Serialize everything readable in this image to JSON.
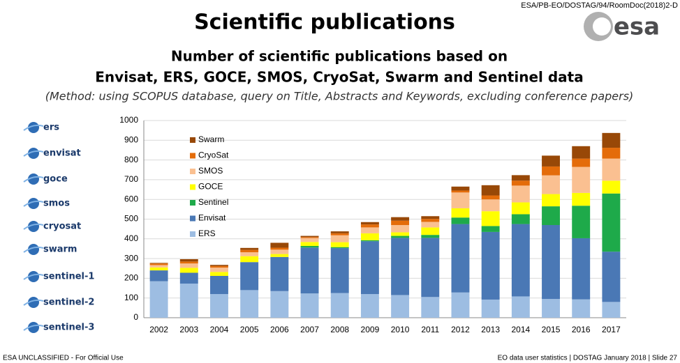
{
  "header": {
    "title": "Scientific publications",
    "reference": "ESA/PB-EO/DOSTAG/94/RoomDoc(2018)2-D",
    "logo": "esa"
  },
  "missions": [
    "ers",
    "envisat",
    "goce",
    "smos",
    "cryosat",
    "swarm",
    "sentinel-1",
    "sentinel-2",
    "sentinel-3"
  ],
  "footer": {
    "left": "ESA UNCLASSIFIED - For Official Use",
    "right": "EO data user statistics | DOSTAG  January 2018  |  Slide 27"
  },
  "chart_data": {
    "type": "bar",
    "stacked": true,
    "title": "Number of scientific publications based on",
    "subtitle": "Envisat, ERS, GOCE, SMOS, CryoSat, Swarm and Sentinel data",
    "note": "(Method: using SCOPUS database, query on Title, Abstracts and Keywords, excluding conference papers)",
    "categories": [
      "2002",
      "2003",
      "2004",
      "2005",
      "2006",
      "2007",
      "2008",
      "2009",
      "2010",
      "2011",
      "2012",
      "2013",
      "2014",
      "2015",
      "2016",
      "2017"
    ],
    "series": [
      {
        "name": "ERS",
        "color": "#9dbde2",
        "values": [
          185,
          173,
          120,
          140,
          135,
          123,
          125,
          120,
          115,
          105,
          128,
          92,
          108,
          95,
          93,
          80
        ]
      },
      {
        "name": "Envisat",
        "color": "#4a78b5",
        "values": [
          55,
          55,
          92,
          142,
          173,
          233,
          228,
          268,
          290,
          300,
          347,
          343,
          367,
          375,
          310,
          255
        ]
      },
      {
        "name": "Sentinel",
        "color": "#1eaa4a",
        "values": [
          0,
          0,
          0,
          0,
          0,
          8,
          5,
          5,
          10,
          15,
          33,
          30,
          50,
          95,
          165,
          295
        ]
      },
      {
        "name": "GOCE",
        "color": "#ffff00",
        "values": [
          15,
          25,
          20,
          30,
          15,
          20,
          25,
          35,
          18,
          38,
          47,
          75,
          60,
          62,
          65,
          65
        ]
      },
      {
        "name": "SMOS",
        "color": "#fac091",
        "values": [
          12,
          22,
          22,
          20,
          22,
          20,
          35,
          30,
          37,
          28,
          80,
          60,
          85,
          95,
          132,
          112
        ]
      },
      {
        "name": "CryoSat",
        "color": "#e46c0a",
        "values": [
          8,
          10,
          8,
          12,
          10,
          5,
          10,
          15,
          22,
          15,
          10,
          20,
          25,
          45,
          42,
          55
        ]
      },
      {
        "name": "Swarm",
        "color": "#984807",
        "values": [
          3,
          12,
          6,
          10,
          25,
          6,
          10,
          12,
          18,
          14,
          20,
          52,
          28,
          55,
          63,
          75
        ]
      }
    ],
    "ylim": [
      0,
      1000
    ],
    "yticks": [
      0,
      100,
      200,
      300,
      400,
      500,
      600,
      700,
      800,
      900,
      1000
    ],
    "grid": true,
    "legend": "upper-left"
  }
}
